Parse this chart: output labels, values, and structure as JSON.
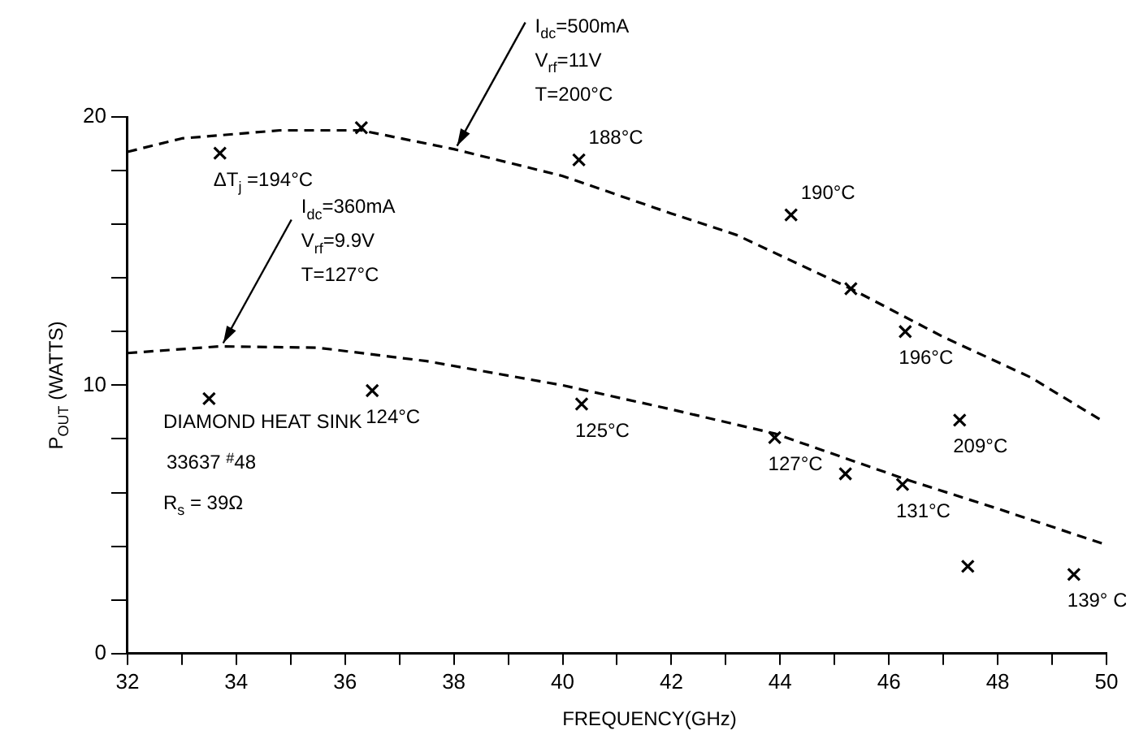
{
  "chart_data": {
    "type": "scatter",
    "xlabel": "FREQUENCY(GHz)",
    "ylabel": "P$_{OUT}$ (WATTS)",
    "xlim": [
      32,
      50
    ],
    "ylim": [
      0,
      20
    ],
    "xticks": [
      32,
      {
        "value": 33,
        "label": null
      },
      34,
      {
        "value": 35,
        "label": null
      },
      36,
      {
        "value": 37,
        "label": null
      },
      38,
      {
        "value": 39,
        "label": null
      },
      40,
      {
        "value": 41,
        "label": null
      },
      42,
      {
        "value": 43,
        "label": null
      },
      44,
      {
        "value": 45,
        "label": null
      },
      46,
      {
        "value": 47,
        "label": null
      },
      48,
      {
        "value": 49,
        "label": null
      },
      50
    ],
    "yticks": [
      0,
      {
        "value": 2,
        "label": null
      },
      {
        "value": 4,
        "label": null
      },
      {
        "value": 6,
        "label": null
      },
      {
        "value": 8,
        "label": null
      },
      10,
      {
        "value": 12,
        "label": null
      },
      {
        "value": 14,
        "label": null
      },
      {
        "value": 16,
        "label": null
      },
      {
        "value": 18,
        "label": null
      },
      20
    ],
    "grid": false,
    "legend": false,
    "marker": "cross",
    "series": [
      {
        "type": "scatter",
        "color": "#000000",
        "x": [
          33.7,
          36.3,
          40.3,
          44.2,
          45.3,
          46.3,
          47.3
        ],
        "values": [
          18.65,
          19.6,
          18.4,
          16.35,
          13.6,
          12.0,
          8.7
        ]
      },
      {
        "type": "scatter",
        "color": "#000000",
        "x": [
          33.5,
          36.5,
          40.35,
          43.9,
          45.2,
          46.25,
          47.45,
          49.4
        ],
        "values": [
          9.5,
          9.8,
          9.3,
          8.05,
          6.7,
          6.3,
          3.25,
          2.95
        ]
      },
      {
        "type": "line",
        "color": "#000000",
        "line_style": "dashed",
        "marker": "none",
        "x": [
          32,
          33,
          34.8,
          36.3,
          38,
          40,
          42,
          43.2,
          45.3,
          47,
          48.6,
          49.9
        ],
        "values": [
          18.7,
          19.2,
          19.5,
          19.5,
          18.8,
          17.8,
          16.4,
          15.6,
          13.6,
          11.8,
          10.3,
          8.7
        ]
      },
      {
        "type": "line",
        "color": "#000000",
        "line_style": "dashed",
        "marker": "none",
        "x": [
          32,
          33.7,
          35.5,
          37.5,
          40,
          42,
          43.9,
          46.3,
          48,
          50
        ],
        "values": [
          11.2,
          11.45,
          11.4,
          10.9,
          10.0,
          9.1,
          8.2,
          6.5,
          5.4,
          4.05
        ]
      }
    ],
    "annotations": [
      {
        "text": "I$_{dc}$=500mA\nV$_{rf}$=11V\nT=200°C",
        "x": 38,
        "y": 18.8
      },
      {
        "text": "I$_{dc}$=360mA\nV$_{rf}$=9.9V\nT=127°C",
        "x": 33.7,
        "y": 11.45
      },
      {
        "text": "ΔT$_{j}$ =194°C",
        "x": 33.7,
        "y": 18.65
      },
      {
        "text": "188°C",
        "x": 40.3,
        "y": 18.4
      },
      {
        "text": "190°C",
        "x": 44.2,
        "y": 16.35
      },
      {
        "text": "196°C",
        "x": 46.3,
        "y": 12.0
      },
      {
        "text": "209°C",
        "x": 47.3,
        "y": 8.7
      },
      {
        "text": "124°C",
        "x": 36.5,
        "y": 9.8
      },
      {
        "text": "125°C",
        "x": 40.35,
        "y": 9.3
      },
      {
        "text": "127°C",
        "x": 43.9,
        "y": 8.05
      },
      {
        "text": "131°C",
        "x": 46.25,
        "y": 6.3
      },
      {
        "text": "139° C",
        "x": 49.4,
        "y": 2.95
      },
      "DIAMOND HEAT SINK",
      "33637 $^{#}$48",
      "R$_{s}$ = 39Ω"
    ]
  }
}
